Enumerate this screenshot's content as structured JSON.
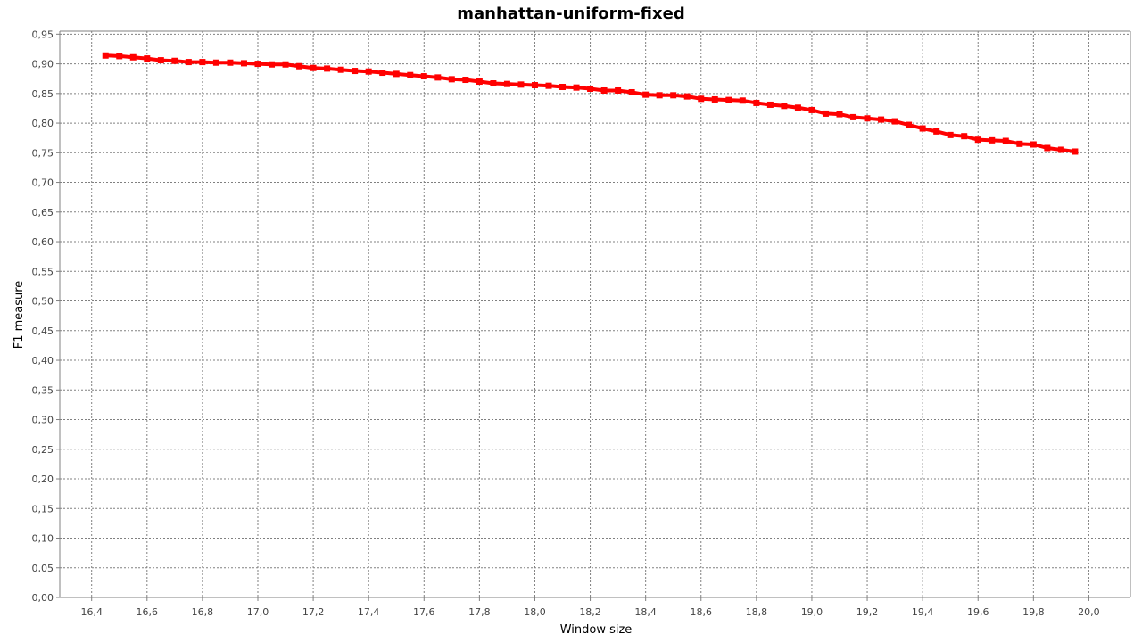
{
  "chart_data": {
    "type": "line",
    "title": "manhattan-uniform-fixed",
    "xlabel": "Window size",
    "ylabel": "F1 measure",
    "xlim": [
      16.285,
      20.15
    ],
    "ylim": [
      0.0,
      0.955
    ],
    "grid": true,
    "x_ticks": [
      "16,4",
      "16,6",
      "16,8",
      "17,0",
      "17,2",
      "17,4",
      "17,6",
      "17,8",
      "18,0",
      "18,2",
      "18,4",
      "18,6",
      "18,8",
      "19,0",
      "19,2",
      "19,4",
      "19,6",
      "19,8",
      "20,0"
    ],
    "y_ticks": [
      "0,00",
      "0,05",
      "0,10",
      "0,15",
      "0,20",
      "0,25",
      "0,30",
      "0,35",
      "0,40",
      "0,45",
      "0,50",
      "0,55",
      "0,60",
      "0,65",
      "0,70",
      "0,75",
      "0,80",
      "0,85",
      "0,90",
      "0,95"
    ],
    "series": [
      {
        "color": "#ff0000",
        "marker": "square",
        "x": [
          16.45,
          16.5,
          16.55,
          16.6,
          16.65,
          16.7,
          16.75,
          16.8,
          16.85,
          16.9,
          16.95,
          17.0,
          17.05,
          17.1,
          17.15,
          17.2,
          17.25,
          17.3,
          17.35,
          17.4,
          17.45,
          17.5,
          17.55,
          17.6,
          17.65,
          17.7,
          17.75,
          17.8,
          17.85,
          17.9,
          17.95,
          18.0,
          18.05,
          18.1,
          18.15,
          18.2,
          18.25,
          18.3,
          18.35,
          18.4,
          18.45,
          18.5,
          18.55,
          18.6,
          18.65,
          18.7,
          18.75,
          18.8,
          18.85,
          18.9,
          18.95,
          19.0,
          19.05,
          19.1,
          19.15,
          19.2,
          19.25,
          19.3,
          19.35,
          19.4,
          19.45,
          19.5,
          19.55,
          19.6,
          19.65,
          19.7,
          19.75,
          19.8,
          19.85,
          19.9,
          19.95
        ],
        "y": [
          0.914,
          0.913,
          0.911,
          0.909,
          0.906,
          0.905,
          0.903,
          0.903,
          0.902,
          0.902,
          0.901,
          0.9,
          0.899,
          0.899,
          0.896,
          0.893,
          0.892,
          0.89,
          0.888,
          0.887,
          0.885,
          0.883,
          0.881,
          0.879,
          0.877,
          0.874,
          0.873,
          0.87,
          0.867,
          0.866,
          0.865,
          0.864,
          0.863,
          0.861,
          0.86,
          0.858,
          0.855,
          0.855,
          0.852,
          0.848,
          0.847,
          0.847,
          0.845,
          0.841,
          0.84,
          0.839,
          0.838,
          0.834,
          0.831,
          0.829,
          0.826,
          0.822,
          0.816,
          0.815,
          0.81,
          0.808,
          0.806,
          0.803,
          0.797,
          0.791,
          0.786,
          0.78,
          0.778,
          0.772,
          0.771,
          0.77,
          0.765,
          0.764,
          0.758,
          0.755,
          0.752
        ]
      }
    ]
  }
}
